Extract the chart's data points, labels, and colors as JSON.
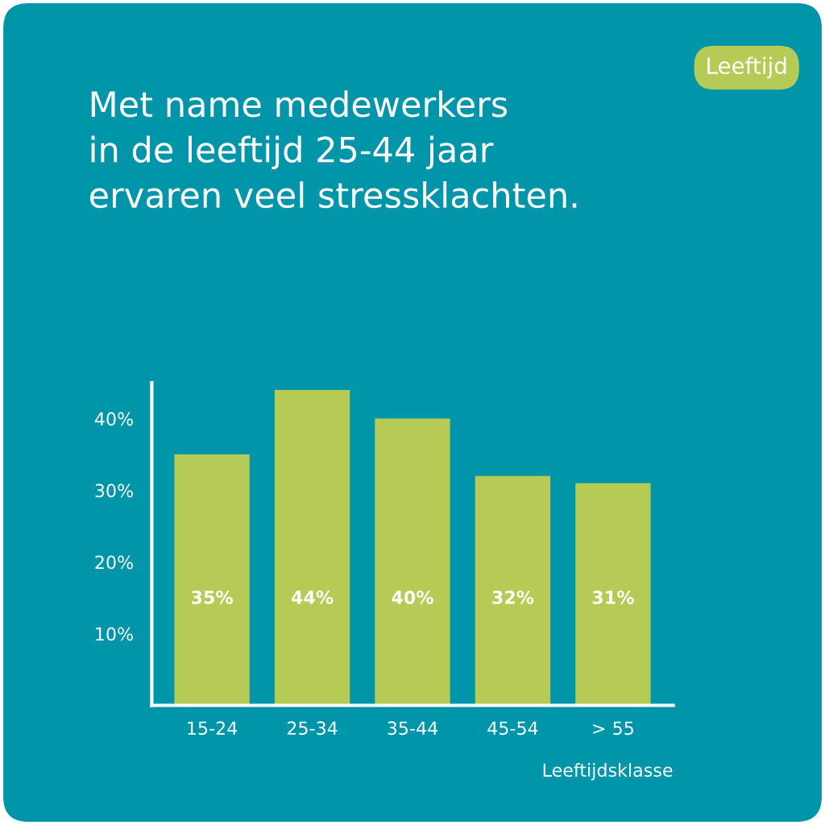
{
  "chart_data": {
    "type": "bar",
    "title": "Met name medewerkers\nin de leeftijd 25-44 jaar\nervaren veel stressklachten.",
    "annotations": [
      "Leeftijd"
    ],
    "xlabel": "Leeftijdsklasse",
    "categories": [
      "15-24",
      "25-34",
      "35-44",
      "45-54",
      "> 55"
    ],
    "values": [
      35,
      44,
      40,
      32,
      31
    ],
    "color": "#b5cb55",
    "value_labels": [
      "35%",
      "44%",
      "40%",
      "32%",
      "31%"
    ],
    "ylim": [
      0,
      45
    ],
    "yticks": [
      {
        "value": 10,
        "label": "10%"
      },
      {
        "value": 20,
        "label": "20%"
      },
      {
        "value": 30,
        "label": "30%"
      },
      {
        "value": 40,
        "label": "40%"
      }
    ]
  }
}
